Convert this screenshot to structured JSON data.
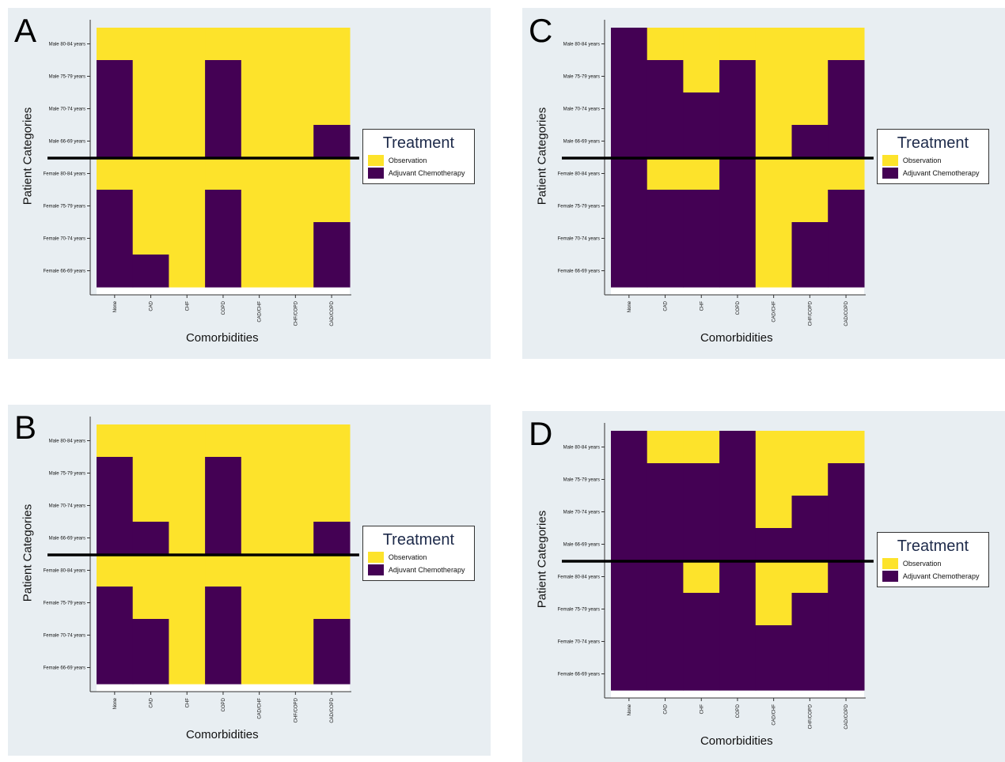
{
  "colors": {
    "observation": "#fde32b",
    "chemo": "#440154",
    "background": "#e8eef2"
  },
  "panels": [
    {
      "letter": "A",
      "legend": {
        "title": "Treatment",
        "items": [
          "Observation",
          "Adjuvant Chemotherapy"
        ]
      },
      "xlabel": "Comorbidities",
      "ylabel": "Patient Categories",
      "grid": [
        [
          0,
          0,
          0,
          0,
          0,
          0,
          0
        ],
        [
          1,
          0,
          0,
          1,
          0,
          0,
          0
        ],
        [
          1,
          0,
          0,
          1,
          0,
          0,
          0
        ],
        [
          1,
          0,
          0,
          1,
          0,
          0,
          1
        ],
        [
          0,
          0,
          0,
          0,
          0,
          0,
          0
        ],
        [
          1,
          0,
          0,
          1,
          0,
          0,
          0
        ],
        [
          1,
          0,
          0,
          1,
          0,
          0,
          1
        ],
        [
          1,
          1,
          0,
          1,
          0,
          0,
          1
        ]
      ]
    },
    {
      "letter": "B",
      "legend": {
        "title": "Treatment",
        "items": [
          "Observation",
          "Adjuvant Chemotherapy"
        ]
      },
      "xlabel": "Comorbidities",
      "ylabel": "Patient Categories",
      "grid": [
        [
          0,
          0,
          0,
          0,
          0,
          0,
          0
        ],
        [
          1,
          0,
          0,
          1,
          0,
          0,
          0
        ],
        [
          1,
          0,
          0,
          1,
          0,
          0,
          0
        ],
        [
          1,
          1,
          0,
          1,
          0,
          0,
          1
        ],
        [
          0,
          0,
          0,
          0,
          0,
          0,
          0
        ],
        [
          1,
          0,
          0,
          1,
          0,
          0,
          0
        ],
        [
          1,
          1,
          0,
          1,
          0,
          0,
          1
        ],
        [
          1,
          1,
          0,
          1,
          0,
          0,
          1
        ]
      ]
    },
    {
      "letter": "C",
      "legend": {
        "title": "Treatment",
        "items": [
          "Observation",
          "Adjuvant Chemotherapy"
        ]
      },
      "xlabel": "Comorbidities",
      "ylabel": "Patient Categories",
      "grid": [
        [
          1,
          0,
          0,
          0,
          0,
          0,
          0
        ],
        [
          1,
          1,
          0,
          1,
          0,
          0,
          1
        ],
        [
          1,
          1,
          1,
          1,
          0,
          0,
          1
        ],
        [
          1,
          1,
          1,
          1,
          0,
          1,
          1
        ],
        [
          1,
          0,
          0,
          1,
          0,
          0,
          0
        ],
        [
          1,
          1,
          1,
          1,
          0,
          0,
          1
        ],
        [
          1,
          1,
          1,
          1,
          0,
          1,
          1
        ],
        [
          1,
          1,
          1,
          1,
          0,
          1,
          1
        ]
      ]
    },
    {
      "letter": "D",
      "legend": {
        "title": "Treatment",
        "items": [
          "Observation",
          "Adjuvant Chemotherapy"
        ]
      },
      "xlabel": "Comorbidities",
      "ylabel": "Patient Categories",
      "grid": [
        [
          1,
          0,
          0,
          1,
          0,
          0,
          0
        ],
        [
          1,
          1,
          1,
          1,
          0,
          0,
          1
        ],
        [
          1,
          1,
          1,
          1,
          0,
          1,
          1
        ],
        [
          1,
          1,
          1,
          1,
          1,
          1,
          1
        ],
        [
          1,
          1,
          0,
          1,
          0,
          0,
          1
        ],
        [
          1,
          1,
          1,
          1,
          0,
          1,
          1
        ],
        [
          1,
          1,
          1,
          1,
          1,
          1,
          1
        ],
        [
          1,
          1,
          1,
          1,
          1,
          1,
          1
        ]
      ]
    }
  ],
  "chart_data": {
    "type": "heatmap",
    "categories_x": [
      "None",
      "CAD",
      "CHF",
      "COPD",
      "CAD/CHF",
      "CHF/COPD",
      "CAD/COPD"
    ],
    "categories_y": [
      "Male 80-84 years",
      "Male 75-79 years",
      "Male 70-74 years",
      "Male 66-69 years",
      "Female 80-84 years",
      "Female 75-79 years",
      "Female 70-74 years",
      "Female 66-69 years"
    ],
    "value_legend": {
      "0": "Observation",
      "1": "Adjuvant Chemotherapy"
    },
    "xlabel": "Comorbidities",
    "ylabel": "Patient Categories",
    "legend_title": "Treatment",
    "legend_position": "right",
    "grid": false
  }
}
